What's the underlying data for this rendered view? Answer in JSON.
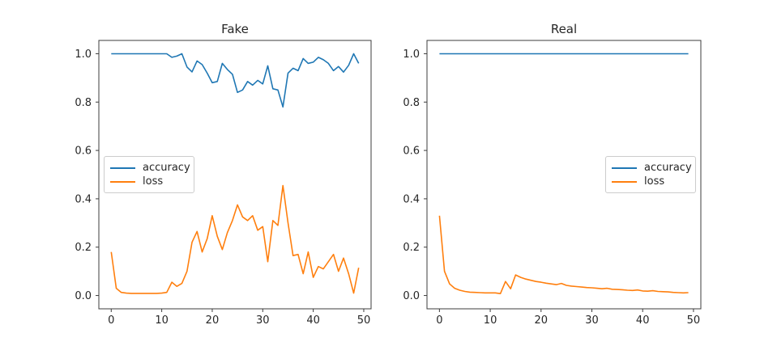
{
  "figure": {
    "background": "#ffffff",
    "text_color": "#262626",
    "spine_color": "#3c3c3c",
    "accent_blue": "#1f77b4",
    "accent_orange": "#ff7f0e"
  },
  "chart_data": [
    {
      "type": "line",
      "title": "Fake",
      "xlabel": "",
      "ylabel": "",
      "xlim": [
        -2.45,
        51.45
      ],
      "ylim": [
        -0.055,
        1.055
      ],
      "grid": false,
      "legend_loc": "center-left",
      "xticks": {
        "values": [
          0,
          10,
          20,
          30,
          40,
          50
        ],
        "labels": [
          "0",
          "10",
          "20",
          "30",
          "40",
          "50"
        ]
      },
      "yticks": {
        "values": [
          0.0,
          0.2,
          0.4,
          0.6,
          0.8,
          1.0
        ],
        "labels": [
          "0.0",
          "0.2",
          "0.4",
          "0.6",
          "0.8",
          "1.0"
        ]
      },
      "x": [
        0,
        1,
        2,
        3,
        4,
        5,
        6,
        7,
        8,
        9,
        10,
        11,
        12,
        13,
        14,
        15,
        16,
        17,
        18,
        19,
        20,
        21,
        22,
        23,
        24,
        25,
        26,
        27,
        28,
        29,
        30,
        31,
        32,
        33,
        34,
        35,
        36,
        37,
        38,
        39,
        40,
        41,
        42,
        43,
        44,
        45,
        46,
        47,
        48,
        49
      ],
      "series": [
        {
          "name": "accuracy",
          "color": "#1f77b4",
          "values": [
            1.0,
            1.0,
            1.0,
            1.0,
            1.0,
            1.0,
            1.0,
            1.0,
            1.0,
            1.0,
            1.0,
            1.0,
            0.985,
            0.99,
            1.0,
            0.945,
            0.925,
            0.97,
            0.955,
            0.92,
            0.88,
            0.885,
            0.96,
            0.935,
            0.915,
            0.84,
            0.85,
            0.885,
            0.87,
            0.89,
            0.875,
            0.95,
            0.855,
            0.85,
            0.78,
            0.92,
            0.94,
            0.93,
            0.98,
            0.96,
            0.965,
            0.985,
            0.975,
            0.96,
            0.93,
            0.947,
            0.924,
            0.952,
            1.0,
            0.96
          ]
        },
        {
          "name": "loss",
          "color": "#ff7f0e",
          "values": [
            0.18,
            0.03,
            0.013,
            0.01,
            0.009,
            0.009,
            0.009,
            0.009,
            0.009,
            0.009,
            0.01,
            0.013,
            0.055,
            0.038,
            0.05,
            0.1,
            0.22,
            0.265,
            0.18,
            0.235,
            0.33,
            0.245,
            0.19,
            0.26,
            0.31,
            0.375,
            0.325,
            0.31,
            0.33,
            0.27,
            0.285,
            0.14,
            0.31,
            0.29,
            0.455,
            0.3,
            0.165,
            0.17,
            0.09,
            0.18,
            0.075,
            0.12,
            0.11,
            0.14,
            0.17,
            0.1,
            0.155,
            0.09,
            0.01,
            0.115
          ]
        }
      ]
    },
    {
      "type": "line",
      "title": "Real",
      "xlabel": "",
      "ylabel": "",
      "xlim": [
        -2.45,
        51.45
      ],
      "ylim": [
        -0.055,
        1.055
      ],
      "grid": false,
      "legend_loc": "center-right",
      "xticks": {
        "values": [
          0,
          10,
          20,
          30,
          40,
          50
        ],
        "labels": [
          "0",
          "10",
          "20",
          "30",
          "40",
          "50"
        ]
      },
      "yticks": {
        "values": [
          0.0,
          0.2,
          0.4,
          0.6,
          0.8,
          1.0
        ],
        "labels": [
          "0.0",
          "0.2",
          "0.4",
          "0.6",
          "0.8",
          "1.0"
        ]
      },
      "x": [
        0,
        1,
        2,
        3,
        4,
        5,
        6,
        7,
        8,
        9,
        10,
        11,
        12,
        13,
        14,
        15,
        16,
        17,
        18,
        19,
        20,
        21,
        22,
        23,
        24,
        25,
        26,
        27,
        28,
        29,
        30,
        31,
        32,
        33,
        34,
        35,
        36,
        37,
        38,
        39,
        40,
        41,
        42,
        43,
        44,
        45,
        46,
        47,
        48,
        49
      ],
      "series": [
        {
          "name": "accuracy",
          "color": "#1f77b4",
          "values": [
            1.0,
            1.0,
            1.0,
            1.0,
            1.0,
            1.0,
            1.0,
            1.0,
            1.0,
            1.0,
            1.0,
            1.0,
            1.0,
            1.0,
            1.0,
            1.0,
            1.0,
            1.0,
            1.0,
            1.0,
            1.0,
            1.0,
            1.0,
            1.0,
            1.0,
            1.0,
            1.0,
            1.0,
            1.0,
            1.0,
            1.0,
            1.0,
            1.0,
            1.0,
            1.0,
            1.0,
            1.0,
            1.0,
            1.0,
            1.0,
            1.0,
            1.0,
            1.0,
            1.0,
            1.0,
            1.0,
            1.0,
            1.0,
            1.0,
            1.0
          ]
        },
        {
          "name": "loss",
          "color": "#ff7f0e",
          "values": [
            0.33,
            0.1,
            0.048,
            0.03,
            0.022,
            0.017,
            0.014,
            0.013,
            0.012,
            0.011,
            0.011,
            0.011,
            0.008,
            0.058,
            0.028,
            0.085,
            0.075,
            0.068,
            0.063,
            0.058,
            0.055,
            0.051,
            0.048,
            0.045,
            0.05,
            0.042,
            0.039,
            0.037,
            0.035,
            0.033,
            0.032,
            0.03,
            0.028,
            0.03,
            0.026,
            0.025,
            0.024,
            0.022,
            0.021,
            0.023,
            0.019,
            0.018,
            0.02,
            0.017,
            0.016,
            0.015,
            0.013,
            0.012,
            0.011,
            0.012
          ]
        }
      ]
    }
  ]
}
